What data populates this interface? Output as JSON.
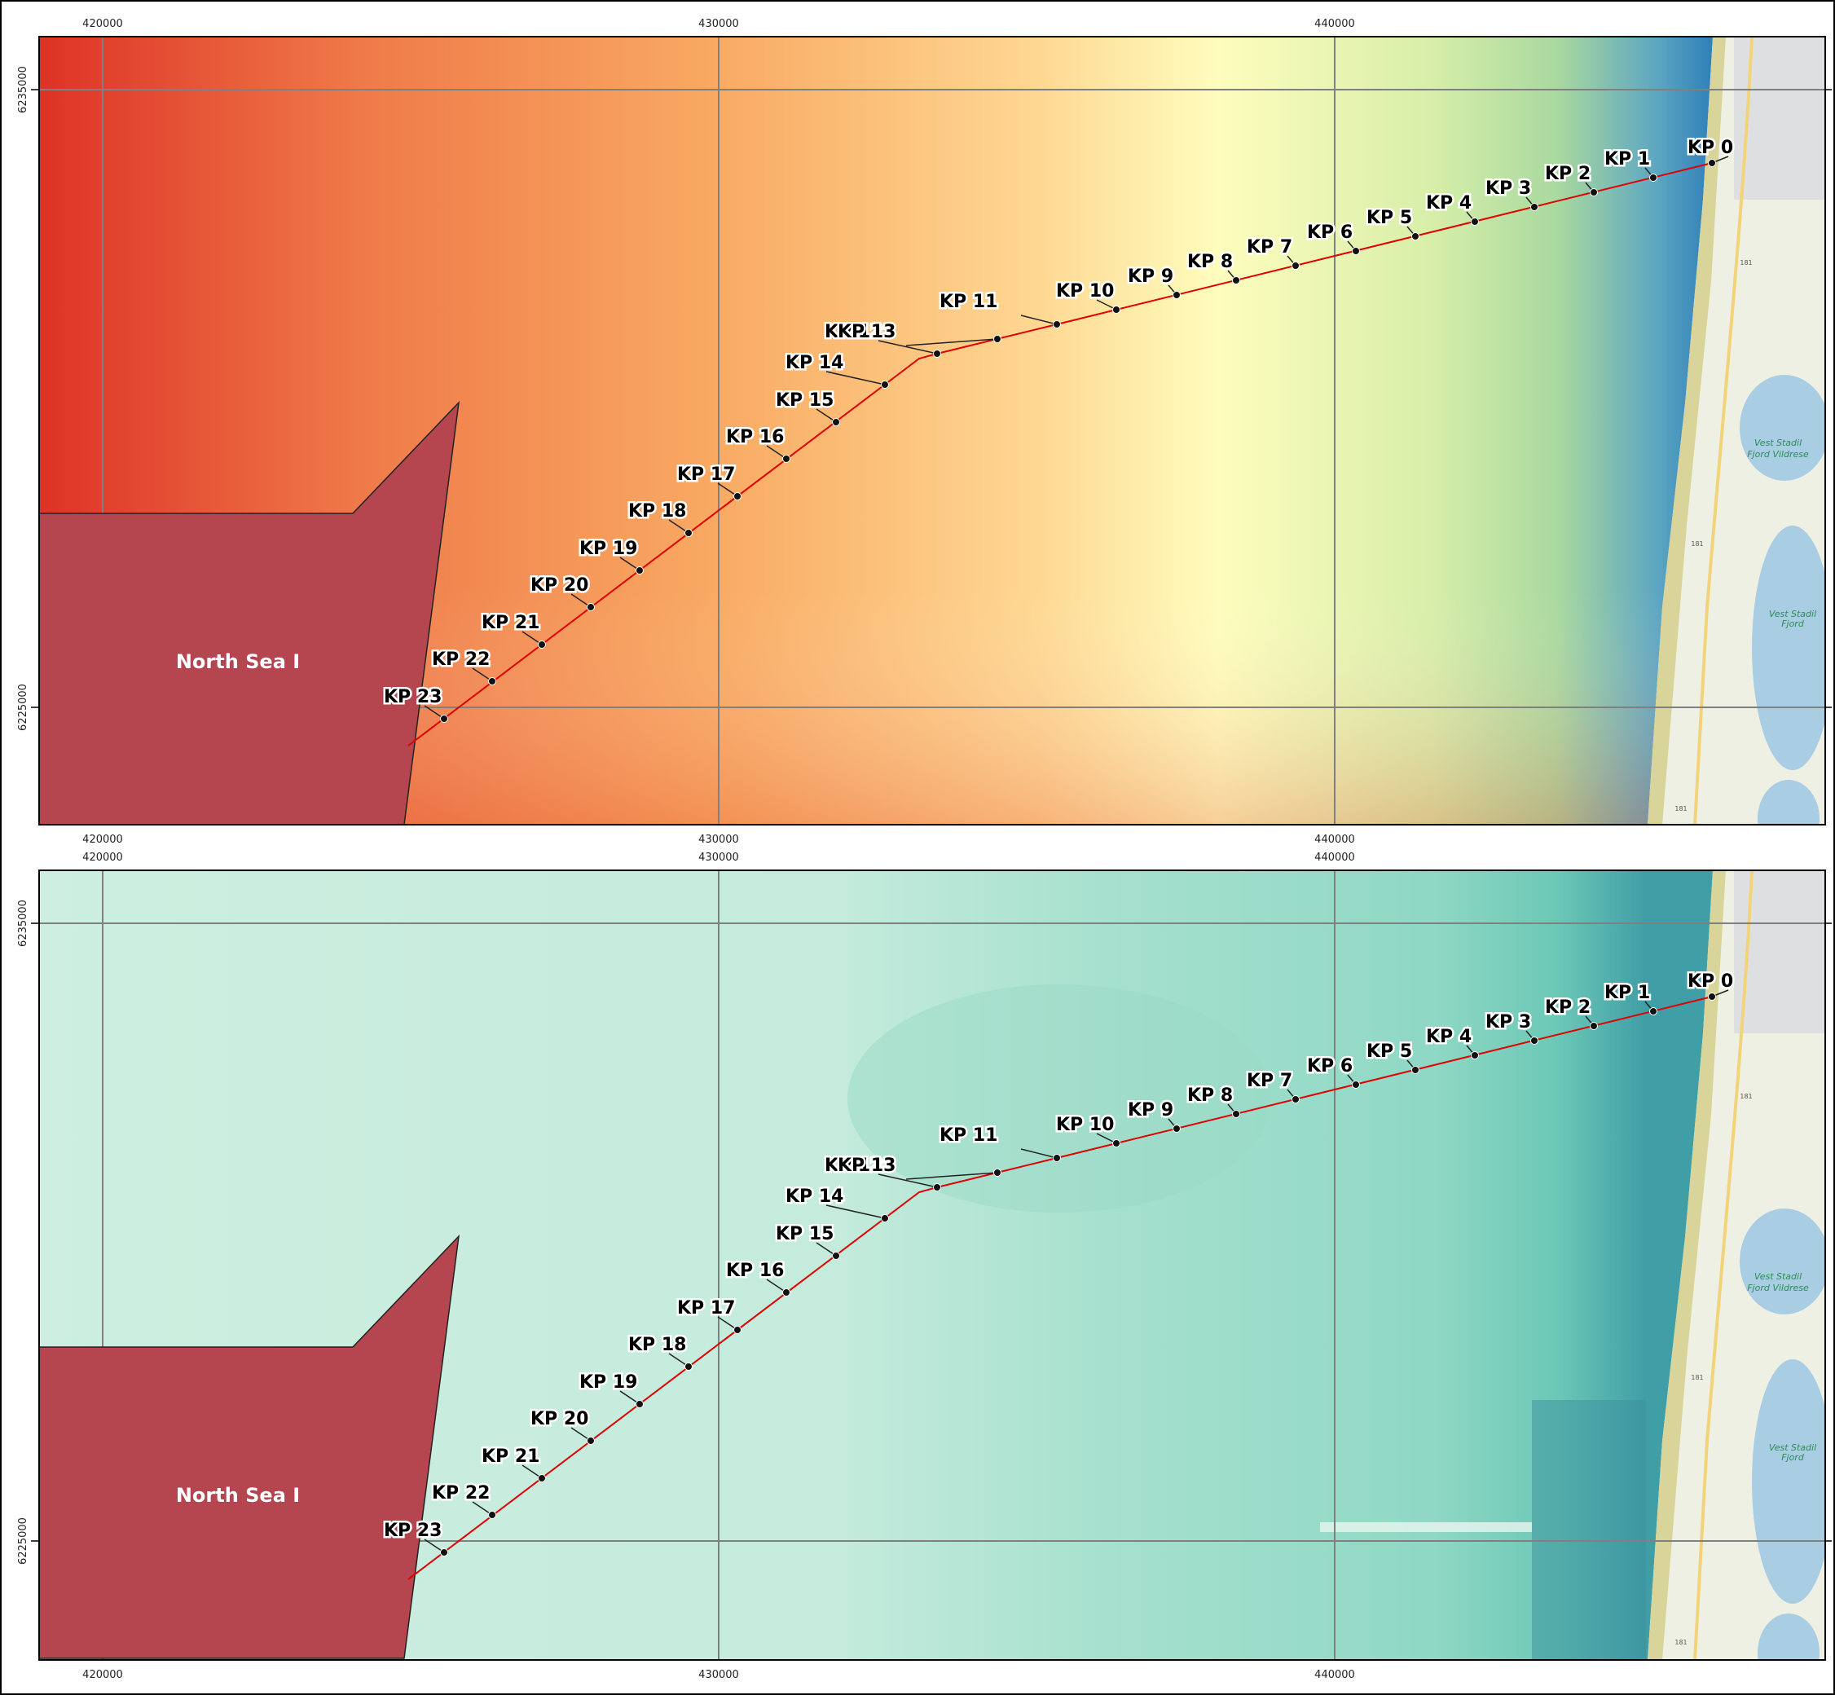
{
  "axes": {
    "x_ticks": [
      "420000",
      "430000",
      "440000"
    ],
    "y_ticks": [
      "6235000",
      "6225000"
    ]
  },
  "area": {
    "name": "North Sea I",
    "fill": "#b5464f"
  },
  "route": {
    "color": "#e00000",
    "kp_labels": [
      "KP 0",
      "KP 1",
      "KP 2",
      "KP 3",
      "KP 4",
      "KP 5",
      "KP 6",
      "KP 7",
      "KP 8",
      "KP 9",
      "KP 10",
      "KP 11",
      "KP 12",
      "KP 13",
      "KP 14",
      "KP 15",
      "KP 16",
      "KP 17",
      "KP 18",
      "KP 19",
      "KP 20",
      "KP 21",
      "KP 22",
      "KP 23"
    ]
  },
  "panels": [
    {
      "name": "map-panel-top",
      "theme": "heat"
    },
    {
      "name": "map-panel-bottom",
      "theme": "teal"
    }
  ],
  "basemap": {
    "place_label_line1": "Vest Stadil",
    "place_label_line2": "Fjord Vildrese",
    "lake_label_line1": "Vest Stadil",
    "lake_label_line2": "Fjord",
    "road_number": "181"
  }
}
